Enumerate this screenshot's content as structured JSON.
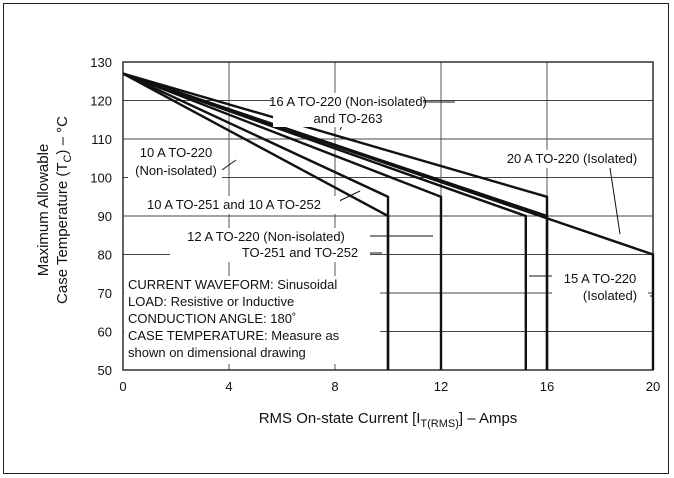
{
  "chart_data": {
    "type": "line",
    "xlabel": "RMS On-state Current [I",
    "xlabel_sub": "T(RMS)",
    "xlabel_tail": "] – Amps",
    "ylabel_line1": "Maximum Allowable",
    "ylabel_line2": "Case Temperature (T",
    "ylabel_sub": "C",
    "ylabel_tail": ") – °C",
    "xlim": [
      0,
      20
    ],
    "ylim": [
      50,
      130
    ],
    "x_ticks": [
      0,
      4,
      8,
      12,
      16,
      20
    ],
    "y_ticks": [
      50,
      60,
      70,
      80,
      90,
      100,
      110,
      120,
      130
    ],
    "grid": true,
    "series": [
      {
        "name": "10 A TO-251 and 10 A TO-252",
        "points": [
          [
            0,
            127
          ],
          [
            10,
            90
          ],
          [
            10,
            50
          ]
        ]
      },
      {
        "name": "10 A TO-220 (Non-isolated)",
        "points": [
          [
            0,
            127
          ],
          [
            10,
            95
          ],
          [
            10,
            50
          ]
        ]
      },
      {
        "name": "12 A TO-220 (Non-isolated) TO-251 and TO-252",
        "points": [
          [
            0,
            127
          ],
          [
            12,
            95
          ],
          [
            12,
            50
          ]
        ]
      },
      {
        "name": "15 A TO-220 (Isolated)",
        "points": [
          [
            0,
            127
          ],
          [
            15.2,
            90
          ],
          [
            15.2,
            50
          ]
        ]
      },
      {
        "name": "16 A TO-220 (Non-isolated) and TO-263",
        "points": [
          [
            0,
            127
          ],
          [
            16,
            90
          ],
          [
            16,
            50
          ]
        ]
      },
      {
        "name": "16 A TO-220 (Non-isolated) and TO-263",
        "points": [
          [
            0,
            127
          ],
          [
            16,
            95
          ],
          [
            16,
            50
          ]
        ]
      },
      {
        "name": "20 A TO-220 (Isolated)",
        "points": [
          [
            0,
            127
          ],
          [
            20,
            80
          ],
          [
            20,
            50
          ]
        ]
      }
    ],
    "annotations": {
      "a16": [
        "16 A TO-220 (Non-isolated)",
        "and TO-263"
      ],
      "a10a": [
        "10 A TO-220",
        "(Non-isolated)"
      ],
      "a20": [
        "20 A TO-220 (Isolated)"
      ],
      "a10b": [
        "10 A TO-251 and 10 A TO-252"
      ],
      "a12": [
        "12 A TO-220 (Non-isolated)",
        "TO-251 and TO-252"
      ],
      "a15": [
        "15 A TO-220",
        "(Isolated)"
      ]
    },
    "conditions": [
      "CURRENT WAVEFORM: Sinusoidal",
      "LOAD: Resistive or Inductive",
      "CONDUCTION ANGLE: 180˚",
      "CASE TEMPERATURE: Measure as",
      "shown on dimensional drawing"
    ]
  }
}
